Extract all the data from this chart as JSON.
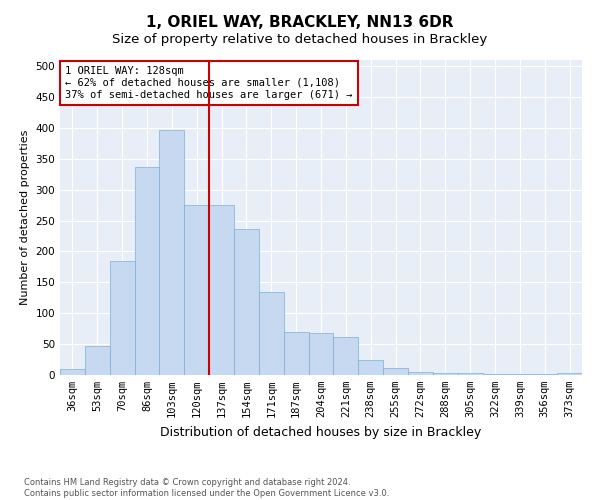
{
  "title": "1, ORIEL WAY, BRACKLEY, NN13 6DR",
  "subtitle": "Size of property relative to detached houses in Brackley",
  "xlabel": "Distribution of detached houses by size in Brackley",
  "ylabel": "Number of detached properties",
  "categories": [
    "36sqm",
    "53sqm",
    "70sqm",
    "86sqm",
    "103sqm",
    "120sqm",
    "137sqm",
    "154sqm",
    "171sqm",
    "187sqm",
    "204sqm",
    "221sqm",
    "238sqm",
    "255sqm",
    "272sqm",
    "288sqm",
    "305sqm",
    "322sqm",
    "339sqm",
    "356sqm",
    "373sqm"
  ],
  "values": [
    10,
    47,
    185,
    337,
    397,
    275,
    275,
    237,
    135,
    70,
    68,
    62,
    25,
    12,
    5,
    4,
    3,
    2,
    1,
    1,
    3
  ],
  "bar_color": "#c6d9f0",
  "bar_edgecolor": "#7bafd4",
  "vline_x": 5.5,
  "vline_color": "#cc0000",
  "annotation_text": "1 ORIEL WAY: 128sqm\n← 62% of detached houses are smaller (1,108)\n37% of semi-detached houses are larger (671) →",
  "annotation_box_color": "#cc0000",
  "ylim": [
    0,
    510
  ],
  "plot_background": "#e8eef8",
  "footer": "Contains HM Land Registry data © Crown copyright and database right 2024.\nContains public sector information licensed under the Open Government Licence v3.0.",
  "title_fontsize": 11,
  "subtitle_fontsize": 9.5,
  "xlabel_fontsize": 9,
  "ylabel_fontsize": 8,
  "tick_fontsize": 7.5
}
